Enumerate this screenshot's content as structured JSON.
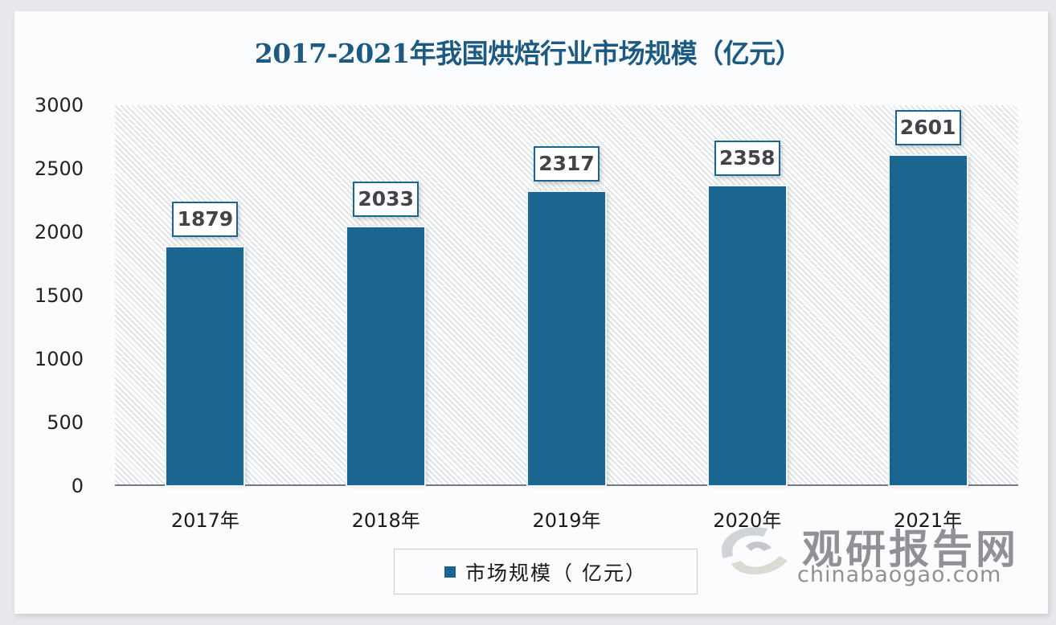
{
  "title": "2017-2021年我国烘焙行业市场规模（亿元）",
  "y_ticks": [
    "3000",
    "2500",
    "2000",
    "1500",
    "1000",
    "500",
    "0"
  ],
  "bars": [
    {
      "category": "2017年",
      "value": 1879,
      "label": "1879"
    },
    {
      "category": "2018年",
      "value": 2033,
      "label": "2033"
    },
    {
      "category": "2019年",
      "value": 2317,
      "label": "2317"
    },
    {
      "category": "2020年",
      "value": 2358,
      "label": "2358"
    },
    {
      "category": "2021年",
      "value": 2601,
      "label": "2601"
    }
  ],
  "legend": {
    "label": "市场规模（ 亿元）",
    "color": "#1b6690"
  },
  "watermark": {
    "cn": "观研报告网",
    "en": "chinabaogao.com"
  },
  "colors": {
    "bar": "#1b6690",
    "title": "#1d5a82"
  },
  "chart_data": {
    "type": "bar",
    "title": "2017-2021年我国烘焙行业市场规模（亿元）",
    "categories": [
      "2017年",
      "2018年",
      "2019年",
      "2020年",
      "2021年"
    ],
    "series": [
      {
        "name": "市场规模（亿元）",
        "values": [
          1879,
          2033,
          2317,
          2358,
          2601
        ]
      }
    ],
    "values": [
      1879,
      2033,
      2317,
      2358,
      2601
    ],
    "xlabel": "",
    "ylabel": "",
    "ylim": [
      0,
      3000
    ],
    "yticks": [
      0,
      500,
      1000,
      1500,
      2000,
      2500,
      3000
    ],
    "grid": false,
    "data_labels": true,
    "legend_position": "bottom"
  }
}
